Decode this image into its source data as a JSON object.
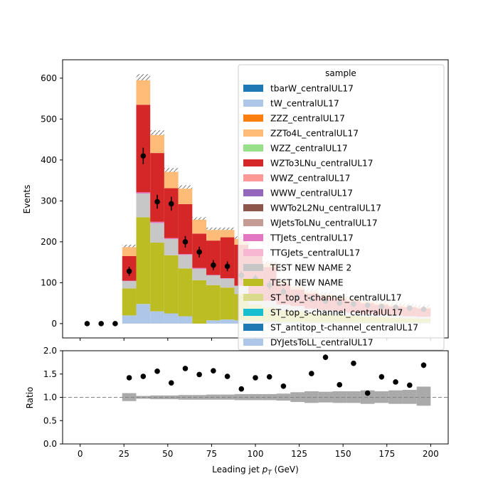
{
  "chart_data": [
    {
      "type": "bar",
      "stacked": true,
      "ylabel": "Events",
      "ylim": [
        -35,
        645
      ],
      "xlim": [
        -10,
        210
      ],
      "yticks": [
        0,
        100,
        200,
        300,
        400,
        500,
        600
      ],
      "bin_edges": [
        0,
        8,
        16,
        24,
        32,
        40,
        48,
        56,
        64,
        72,
        80,
        88,
        96,
        104,
        112,
        120,
        128,
        136,
        144,
        152,
        160,
        168,
        176,
        184,
        192,
        200
      ],
      "legend": {
        "title": "sample",
        "placement": "top-right",
        "entries": [
          {
            "name": "tbarW_centralUL17",
            "color": "#1f77b4"
          },
          {
            "name": "tW_centralUL17",
            "color": "#aec7e8"
          },
          {
            "name": "ZZZ_centralUL17",
            "color": "#ff7f0e"
          },
          {
            "name": "ZZTo4L_centralUL17",
            "color": "#ffbb78"
          },
          {
            "name": "WZZ_centralUL17",
            "color": "#98df8a"
          },
          {
            "name": "WZTo3LNu_centralUL17",
            "color": "#d62728"
          },
          {
            "name": "WWZ_centralUL17",
            "color": "#ff9896"
          },
          {
            "name": "WWW_centralUL17",
            "color": "#9467bd"
          },
          {
            "name": "WWTo2L2Nu_centralUL17",
            "color": "#8c564b"
          },
          {
            "name": "WJetsToLNu_centralUL17",
            "color": "#c49c94"
          },
          {
            "name": "TTJets_centralUL17",
            "color": "#e377c2"
          },
          {
            "name": "TTGJets_centralUL17",
            "color": "#f7b6d2"
          },
          {
            "name": "TEST NEW NAME 2",
            "color": "#c7c7c7"
          },
          {
            "name": "TEST NEW NAME",
            "color": "#bcbd22"
          },
          {
            "name": "ST_top_t-channel_centralUL17",
            "color": "#dbdb8d"
          },
          {
            "name": "ST_top_s-channel_centralUL17",
            "color": "#17becf"
          },
          {
            "name": "ST_antitop_t-channel_centralUL17",
            "color": "#1f77b4"
          },
          {
            "name": "DYJetsToLL_centralUL17",
            "color": "#aec7e8"
          }
        ]
      },
      "stack": [
        {
          "name": "DYJetsToLL_centralUL17",
          "color": "#aec7e8",
          "values": [
            0,
            0,
            0,
            20,
            48,
            30,
            25,
            18,
            0,
            8,
            10,
            8,
            6,
            5,
            4,
            4,
            3,
            3,
            3,
            3,
            2,
            2,
            2,
            2,
            2
          ]
        },
        {
          "name": "TEST NEW NAME",
          "color": "#bcbd22",
          "values": [
            0,
            0,
            0,
            66,
            212,
            168,
            142,
            117,
            106,
            86,
            78,
            64,
            40,
            34,
            28,
            26,
            22,
            20,
            18,
            16,
            15,
            14,
            12,
            11,
            10
          ]
        },
        {
          "name": "TEST NEW NAME 2",
          "color": "#c7c7c7",
          "values": [
            0,
            0,
            0,
            18,
            58,
            48,
            40,
            33,
            28,
            24,
            22,
            20,
            20,
            16,
            14,
            12,
            11,
            10,
            9,
            8,
            7,
            6,
            6,
            5,
            5
          ]
        },
        {
          "name": "TTJets_centralUL17",
          "color": "#e377c2",
          "values": [
            0,
            0,
            0,
            1,
            3,
            3,
            2,
            2,
            2,
            1,
            1,
            1,
            1,
            1,
            1,
            1,
            1,
            0,
            0,
            0,
            0,
            0,
            0,
            0,
            0
          ]
        },
        {
          "name": "WZTo3LNu_centralUL17",
          "color": "#d62728",
          "values": [
            0,
            0,
            0,
            60,
            214,
            168,
            122,
            122,
            84,
            84,
            100,
            100,
            100,
            82,
            50,
            40,
            36,
            32,
            30,
            28,
            26,
            24,
            22,
            22,
            20
          ]
        },
        {
          "name": "ZZTo4L_centralUL17",
          "color": "#ffbb78",
          "values": [
            0,
            0,
            0,
            22,
            60,
            44,
            40,
            38,
            34,
            26,
            18,
            14,
            10,
            9,
            8,
            7,
            6,
            6,
            5,
            5,
            4,
            4,
            4,
            3,
            3
          ]
        }
      ],
      "data_points": {
        "x": [
          4,
          12,
          20,
          28,
          36,
          44,
          52,
          60,
          68,
          76,
          84,
          92,
          100,
          108,
          116,
          124,
          132,
          140,
          148,
          156,
          164,
          172,
          180,
          188,
          196
        ],
        "y": [
          0,
          0,
          0,
          128,
          410,
          298,
          293,
          200,
          175,
          143,
          140,
          118,
          110,
          94,
          78,
          64,
          60,
          55,
          50,
          48,
          45,
          42,
          40,
          38,
          35
        ],
        "yerr": [
          1,
          1,
          1,
          11,
          20,
          17,
          17,
          14,
          13,
          12,
          12,
          11,
          10,
          10,
          9,
          8,
          8,
          7,
          7,
          7,
          7,
          6,
          6,
          6,
          6
        ]
      }
    },
    {
      "type": "scatter",
      "xlabel": "Leading jet  $p_T$ (GeV)",
      "ylabel": "Ratio",
      "ylim": [
        0.0,
        2.0
      ],
      "xlim": [
        -10,
        210
      ],
      "yticks": [
        "0.0",
        "0.5",
        "1.0",
        "1.5",
        "2.0"
      ],
      "xticks": [
        "0",
        "25",
        "50",
        "75",
        "100",
        "125",
        "150",
        "175",
        "200"
      ],
      "reference_line": 1.0,
      "x": [
        28,
        36,
        44,
        52,
        60,
        68,
        76,
        84,
        92,
        100,
        108,
        116,
        132,
        140,
        148,
        156,
        164,
        172,
        180,
        188,
        196
      ],
      "y": [
        1.42,
        1.45,
        1.56,
        1.31,
        1.62,
        1.49,
        1.57,
        1.45,
        1.18,
        1.42,
        1.44,
        1.24,
        1.51,
        1.86,
        1.27,
        1.73,
        1.09,
        1.44,
        1.33,
        1.26,
        1.69
      ],
      "yerr": [
        0.03,
        0.03,
        0.03,
        0.03,
        0.03,
        0.03,
        0.03,
        0.03,
        0.03,
        0.03,
        0.03,
        0.03,
        0.04,
        0.06,
        0.03,
        0.04,
        0.03,
        0.06,
        0.03,
        0.03,
        0.06
      ],
      "uncertainty_band": {
        "color": "#aaaaaa",
        "lo": [
          1,
          1,
          1,
          0.92,
          0.97,
          0.96,
          0.96,
          0.95,
          0.95,
          0.95,
          0.95,
          0.94,
          0.94,
          0.94,
          0.93,
          0.9,
          0.88,
          0.89,
          0.88,
          0.88,
          0.86,
          0.88,
          0.86,
          0.86,
          0.82
        ],
        "hi": [
          1,
          1,
          1,
          1.09,
          1.03,
          1.04,
          1.04,
          1.05,
          1.05,
          1.06,
          1.06,
          1.07,
          1.07,
          1.07,
          1.08,
          1.11,
          1.13,
          1.12,
          1.13,
          1.13,
          1.15,
          1.13,
          1.15,
          1.16,
          1.23
        ]
      }
    }
  ]
}
